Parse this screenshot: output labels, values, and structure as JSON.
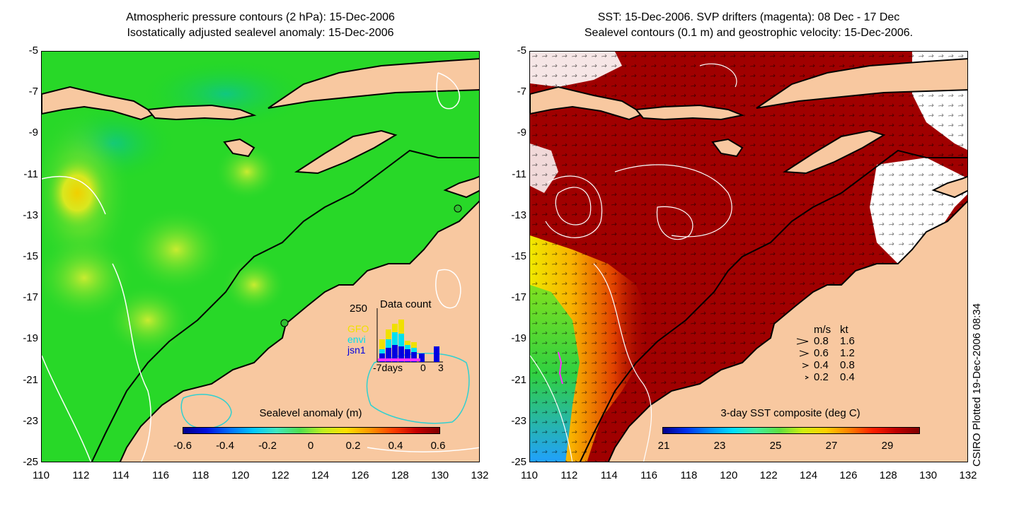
{
  "left_title": {
    "line1": "Atmospheric pressure contours (2 hPa): 15-Dec-2006",
    "line2": "Isostatically adjusted sealevel anomaly: 15-Dec-2006"
  },
  "right_title": {
    "line1": "SST: 15-Dec-2006. SVP drifters (magenta): 08 Dec - 17 Dec",
    "line2": "Sealevel contours (0.1 m) and geostrophic velocity: 15-Dec-2006."
  },
  "axes": {
    "y_ticks": [
      "-5",
      "-7",
      "-9",
      "-11",
      "-13",
      "-15",
      "-17",
      "-19",
      "-21",
      "-23",
      "-25"
    ],
    "x_ticks": [
      "110",
      "112",
      "114",
      "116",
      "118",
      "120",
      "122",
      "124",
      "126",
      "128",
      "130",
      "132"
    ]
  },
  "left_colorbar": {
    "title": "Sealevel anomaly (m)",
    "ticks": [
      "-0.6",
      "-0.4",
      "-0.2",
      "0",
      "0.2",
      "0.4",
      "0.6"
    ]
  },
  "right_colorbar": {
    "title": "3-day SST composite (deg C)",
    "ticks": [
      "21",
      "23",
      "25",
      "27",
      "29"
    ]
  },
  "data_count_inset": {
    "title": "Data count",
    "y_max": "250",
    "x_left": "-7days",
    "x_mid": "0",
    "x_right": "3",
    "missions": [
      "GFO",
      "envi",
      "jsn1"
    ],
    "mission_colors": [
      "#f0e000",
      "#00e0f0",
      "#0000e0"
    ]
  },
  "velocity_legend": {
    "header_ms": "m/s",
    "header_kt": "kt",
    "rows": [
      {
        "ms": "0.8",
        "kt": "1.6"
      },
      {
        "ms": "0.6",
        "kt": "1.2"
      },
      {
        "ms": "0.4",
        "kt": "0.8"
      },
      {
        "ms": "0.2",
        "kt": "0.4"
      }
    ]
  },
  "credit": "CSIRO Plotted 19-Dec-2006 08:34",
  "colors": {
    "land": "#f8c8a0",
    "ocean_sla": "#20d820",
    "ocean_sst_warm": "#a00000",
    "coast": "#000000"
  }
}
